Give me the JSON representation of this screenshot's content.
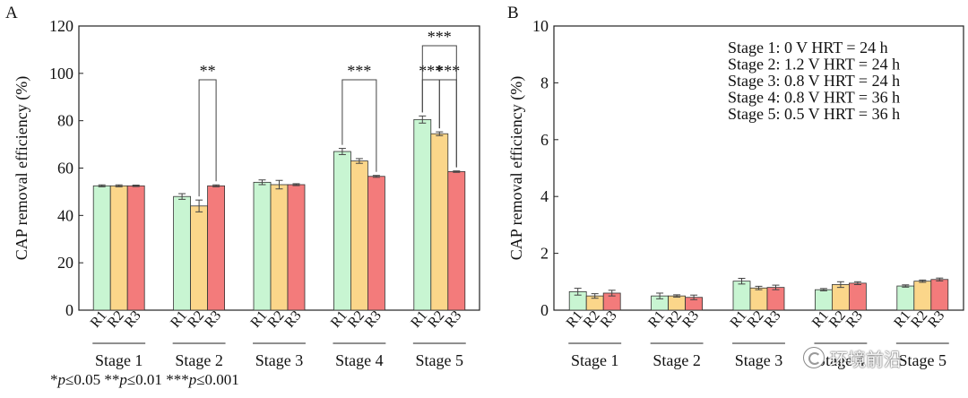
{
  "chart_data": [
    {
      "type": "bar",
      "panel_label": "A",
      "ylabel": "CAP removal efficiency (%)",
      "ylim": [
        0,
        120
      ],
      "yticks": [
        0,
        20,
        40,
        60,
        80,
        100,
        120
      ],
      "groups": [
        "Stage 1",
        "Stage 2",
        "Stage 3",
        "Stage 4",
        "Stage 5"
      ],
      "bar_labels": [
        "R1",
        "R2",
        "R3"
      ],
      "series": [
        {
          "values": [
            52.5,
            48.0,
            54.0,
            67.0,
            80.5
          ],
          "errors": [
            0.4,
            1.2,
            1.0,
            1.3,
            1.5
          ],
          "color": "#c8f5d2"
        },
        {
          "values": [
            52.5,
            44.0,
            53.0,
            63.0,
            74.5
          ],
          "errors": [
            0.4,
            2.5,
            1.8,
            1.0,
            0.8
          ],
          "color": "#fbd68a"
        },
        {
          "values": [
            52.5,
            52.5,
            53.0,
            56.5,
            58.5
          ],
          "errors": [
            0.3,
            0.4,
            0.4,
            0.4,
            0.3
          ],
          "color": "#f37b7b"
        }
      ],
      "significance": [
        {
          "group": 1,
          "from": 1,
          "to": 2,
          "level": 0,
          "label": "**"
        },
        {
          "group": 3,
          "from": 0,
          "to": 2,
          "level": 0,
          "label": "***"
        },
        {
          "group": 4,
          "from": 0,
          "to": 1,
          "level": 0,
          "label": "***"
        },
        {
          "group": 4,
          "from": 1,
          "to": 2,
          "level": 0,
          "label": "***"
        },
        {
          "group": 4,
          "from": 0,
          "to": 2,
          "level": 1,
          "label": "***"
        }
      ]
    },
    {
      "type": "bar",
      "panel_label": "B",
      "ylabel": "CAP removal efficiency (%)",
      "ylim": [
        0,
        10
      ],
      "yticks": [
        0,
        2,
        4,
        6,
        8,
        10
      ],
      "groups": [
        "Stage 1",
        "Stage 2",
        "Stage 3",
        "Stage 4",
        "Stage 5"
      ],
      "bar_labels": [
        "R1",
        "R2",
        "R3"
      ],
      "series": [
        {
          "values": [
            0.65,
            0.5,
            1.02,
            0.72,
            0.85
          ],
          "errors": [
            0.12,
            0.1,
            0.1,
            0.04,
            0.04
          ],
          "color": "#c8f5d2"
        },
        {
          "values": [
            0.5,
            0.5,
            0.78,
            0.9,
            1.02
          ],
          "errors": [
            0.08,
            0.04,
            0.06,
            0.1,
            0.04
          ],
          "color": "#fbd68a"
        },
        {
          "values": [
            0.6,
            0.45,
            0.8,
            0.95,
            1.08
          ],
          "errors": [
            0.1,
            0.08,
            0.08,
            0.05,
            0.05
          ],
          "color": "#f37b7b"
        }
      ],
      "legend_text": [
        "Stage 1:  0 V HRT = 24 h",
        "Stage 2:  1.2 V HRT = 24 h",
        "Stage 3:  0.8 V HRT = 24 h",
        "Stage 4:  0.8 V HRT = 36 h",
        "Stage 5:  0.5 V HRT = 36 h"
      ]
    }
  ],
  "footnote": {
    "items": [
      {
        "stars": "*",
        "p": "p",
        "rel": "≤0.05"
      },
      {
        "stars": " **",
        "p": "p",
        "rel": "≤0.01"
      },
      {
        "stars": " ***",
        "p": "p",
        "rel": "≤0.001"
      }
    ]
  },
  "watermark": {
    "text": "环境前沿",
    "icon": "wechat-icon"
  }
}
